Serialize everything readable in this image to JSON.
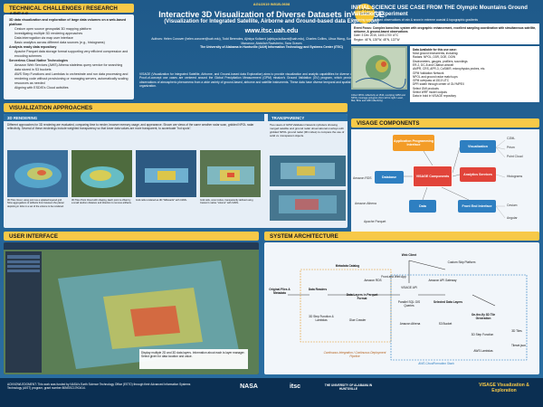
{
  "header": {
    "paper_id": "AGU2019 IN51B-0608",
    "title": "Interactive 3D Visualization of Diverse Datasets in VISAGE",
    "subtitle": "(Visualization for Integrated Satellite, Airborne and Ground-based data Exploration)",
    "url": "www.itsc.uah.edu",
    "badge": "ESIP Poster Award",
    "authors": "Authors: Helen Conover (helen.conover@uah.edu), Todd Berendes, Ajinkya Kulkarni (ajinkya.kulkarni@uah.edu), Charles Collins, Lihua Wang, Sunakshi Nagaraj, Khoram Singh Manaroor, Abdullah Ravistreiro, Sara Graves",
    "affiliation": "The University of Alabama in Huntsville (UAH) Information Technology and Systems Center (ITSC)",
    "abstract": "VISAGE (Visualization for Integrated Satellite, Airborne, and Ground-based data Exploration) aims to provide visualization and analytic capabilities for diverse datasets in an interactive user interface. Proof-of-concept use cases are centered around the Global Precipitation Measurement (GPM) mission's Ground Validation (GV) program, which provides a wealth of interesting, coincident observations of atmospheric phenomena from a wide variety of ground-based, airborne and satellite instruments. These data have diverse temporal and spatial scales, variables, and data formats and organization."
  },
  "sections": {
    "tech": "TECHNICAL CHALLENGES / RESEARCH AREAS",
    "init": "INITIAL SCIENCE USE CASE",
    "vis_approaches": "VISUALIZATION APPROACHES",
    "rendering": "3D RENDERING",
    "transparency": "TRANSPARENCY",
    "components": "VISAGE COMPONENTS",
    "ui": "USER INTERFACE",
    "arch": "SYSTEM ARCHITECTURE"
  },
  "tech": {
    "items": [
      {
        "level": 1,
        "text": "3D data visualization and exploration of large data volumes on a web-based platform"
      },
      {
        "level": 2,
        "text": "Cesium open source geospatial 3D mapping platform"
      },
      {
        "level": 2,
        "text": "Investigating multiple 3D rendering approaches"
      },
      {
        "level": 2,
        "text": "Data interrogation via map user interface"
      },
      {
        "level": 2,
        "text": "Basic analytics across different data sources (e.g., histograms)"
      },
      {
        "level": 1,
        "text": "Analysis ready data repository"
      },
      {
        "level": 2,
        "text": "Apache Parquet data storage format supporting very efficient compression and encoding schemes"
      },
      {
        "level": 1,
        "text": "Serverless Cloud Native Technologies"
      },
      {
        "level": 2,
        "text": "Amazon Web Services (AWS) Athena stateless query service for searching data stored in S3 buckets"
      },
      {
        "level": 2,
        "text": "AWS Step Functions and Lambdas to orchestrate and run data processing and rendering code without provisioning or managing servers, automatically scaling resources as needed"
      },
      {
        "level": 2,
        "text": "Aligning with ESDIS's Cloud activities"
      }
    ]
  },
  "init": {
    "heading": "INITIAL SCIENCE USE CASE FROM THE Olympic Mountains Ground Validation Experiment",
    "sub": "Examining space-based observations of rain & snow in extreme coastal & topographic gradients",
    "event": "Event Focus: Complex baroclinic system with orographic enhancement, excellent sampling coordination with simultaneous satellite, airborne, & ground-based observations",
    "date": "Date: 3 Dec 2015, 1400-1700 UTC",
    "region": "Region: 46°N, 128°W, 48°N, 122°W",
    "data_title": "Data Available for this use case:",
    "data_items": [
      "Most ground instruments, including:",
      "Radars: NPOL, D3R, DOE, DOW",
      "Disdrometers, gauges, profilers, soundings",
      "ER-2, DC-8 and Citation aircraft",
      "AMPR, CRS, APR-3, CoSMIR, microphysics probes, etc.",
      "GPM Validation Network",
      "NPOL and ground radar match-ups",
      "GPM overpass at 1510 UTC",
      "DPR swath through center of OLYMPEX",
      "Select GMI products",
      "Select WRF model outputs",
      "Data in bold in VISAGE repository"
    ],
    "map_caption": "3-Dec NPOL reflectivity at 1510, overlying GPM and NPOL coverage polygons (from left to right: Level, Mar, Brite and GMI reflectivity)"
  },
  "rendering": {
    "desc": "Different approaches for 3D rendering are evaluated, comparing time to render, browser memory usage, and appearance. Shown are views of the same weather radar scan, gridded NPOL radar reflectivity. Several of these renderings include weighted transparency so that lower data values are more transparent, to accentuate \"hot spots\".",
    "captions": [
      "3D Tiles Voxel, using point as a splatted layered grid. Slow aggregations of artifacts from between the planar depicting in ticks in a set of the volume to be rendered.",
      "3D Tiles Point Cloud with shaping, Each point is offset by a small random distance and direction to remove artifacts.",
      "Grid cells rendered as 3D \"billboards\" with CZML.",
      "Grid cells, voxel cubes, transparently defined using Cesium's native \"volume\" with CZML."
    ]
  },
  "transparency": {
    "desc": "Two views of GPM Validation Network cylinders showing merged satellite and ground radar observational overlays with gridded NPOL ground radar (3D cubes) to compare the use of solid vs. transparent objects."
  },
  "components": {
    "nodes": {
      "app": "Application Programming Interface",
      "viz": "Visualization",
      "db": "Database",
      "core": "VISAGE Components",
      "analytics": "Analytics Services",
      "data": "Data",
      "fe": "Front End Interface"
    },
    "labels": {
      "amazon_rds": "Amazon RDS",
      "amazon_athena": "Amazon Athena",
      "apache_parquet": "Apache Parquet",
      "czml": "CZML",
      "prism": "Prism",
      "point_cloud": "Point Cloud",
      "histograms": "Histograms",
      "cesium": "Cesium",
      "angular": "Angular"
    }
  },
  "ui": {
    "desc": "Display multiple 2D and 3D data layers. Information about each is layer manager. Select given for data location and value."
  },
  "arch": {
    "nodes": {
      "web_client": "Web Client",
      "custom_skip": "Custom Skip Platform",
      "front_end": "Front-end Web App",
      "original_files": "Original Files & Metadata",
      "data_readers": "Data Readers",
      "metadata_catalog": "Metadata Catalog",
      "amazon_rds": "Amazon RDS",
      "data_layers": "Data Layers in Parquet Format",
      "visage_api": "VISAGE API",
      "amazon_api": "Amazon API Gateway",
      "parallel_sql": "Parallel SQL GIS Queries",
      "selected_layers": "Selected Data Layers",
      "step_fn_1": "3D Step Function & Lambdas",
      "glue": "Glue Crawler",
      "athena": "Amazon Athena",
      "s3": "S3 Bucket",
      "on_fly": "On-the-fly 3D Tile Generation",
      "step_fn_2": "3D Step Function",
      "tiles": "3D Tiles",
      "lambdas": "AWS Lambdas",
      "tileset": "Tileset.json"
    },
    "legend": "Continuous Integration / Continuous Deployment Pipeline",
    "legend2": "AWS CloudFormation Stack"
  },
  "footer": {
    "ack": "ACKNOWLEDGMENT: This work was funded by NASA's Earth Science Technology Office (ESTO) through their Advanced Information Systems Technology (AIST) program, grant number 80NSSC17K0414.",
    "logos": [
      "NASA",
      "itsc",
      "THE UNIVERSITY OF ALABAMA IN HUNTSVILLE",
      "VISAGE Visualization & Exploration"
    ]
  },
  "colors": {
    "section_bar": "#f7c948",
    "poster_bg": "#2b6fa3",
    "orange": "#f39c27",
    "blue_node": "#2e7fc1",
    "red_node": "#e1443a"
  }
}
